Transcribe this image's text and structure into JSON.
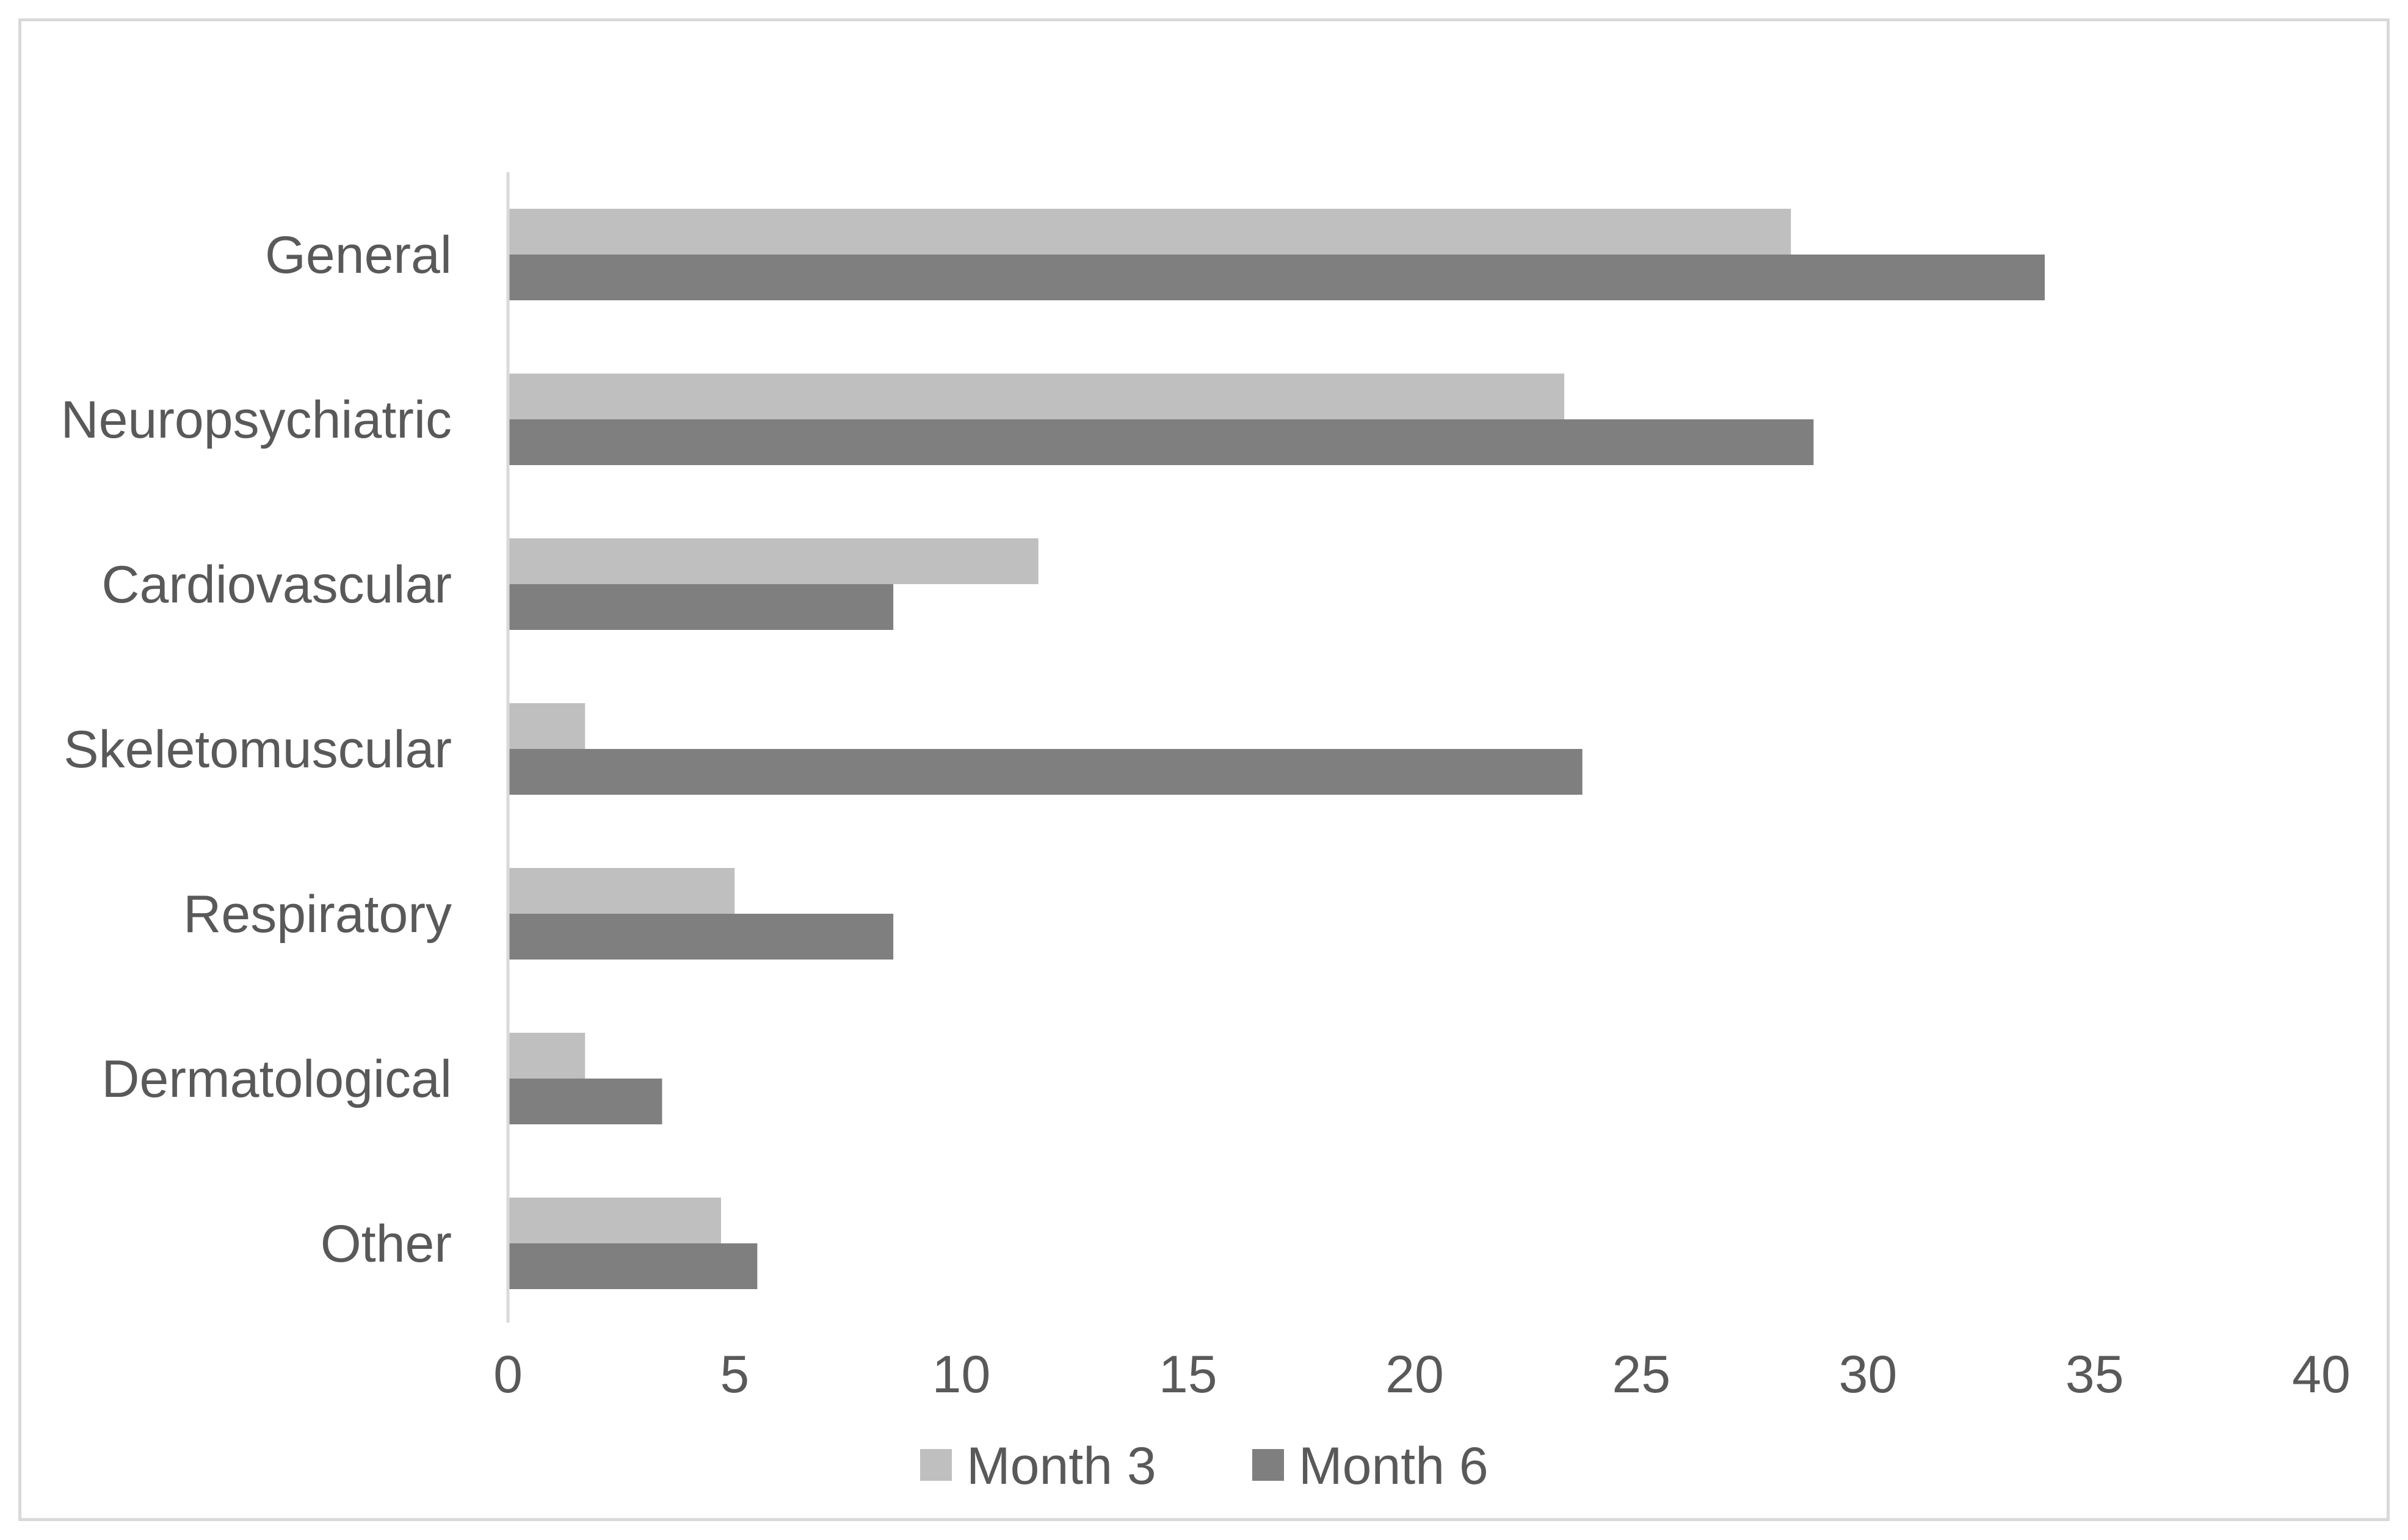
{
  "chart_data": {
    "type": "bar",
    "orientation": "horizontal",
    "categories": [
      "General",
      "Neuropsychiatric",
      "Cardiovascular",
      "Skeletomuscular",
      "Respiratory",
      "Dermatological",
      "Other"
    ],
    "series": [
      {
        "name": "Month 3",
        "color": "#bfbfbf",
        "values": [
          28.3,
          23.3,
          11.7,
          1.7,
          5.0,
          1.7,
          4.7
        ]
      },
      {
        "name": "Month 6",
        "color": "#7f7f7f",
        "values": [
          33.9,
          28.8,
          8.5,
          23.7,
          8.5,
          3.4,
          5.5
        ]
      }
    ],
    "xlim": [
      0,
      40
    ],
    "x_ticks": [
      "0",
      "5",
      "10",
      "15",
      "20",
      "25",
      "30",
      "35",
      "40"
    ],
    "title": "",
    "xlabel": "",
    "ylabel": "",
    "grid": false,
    "legend": "bottom"
  }
}
